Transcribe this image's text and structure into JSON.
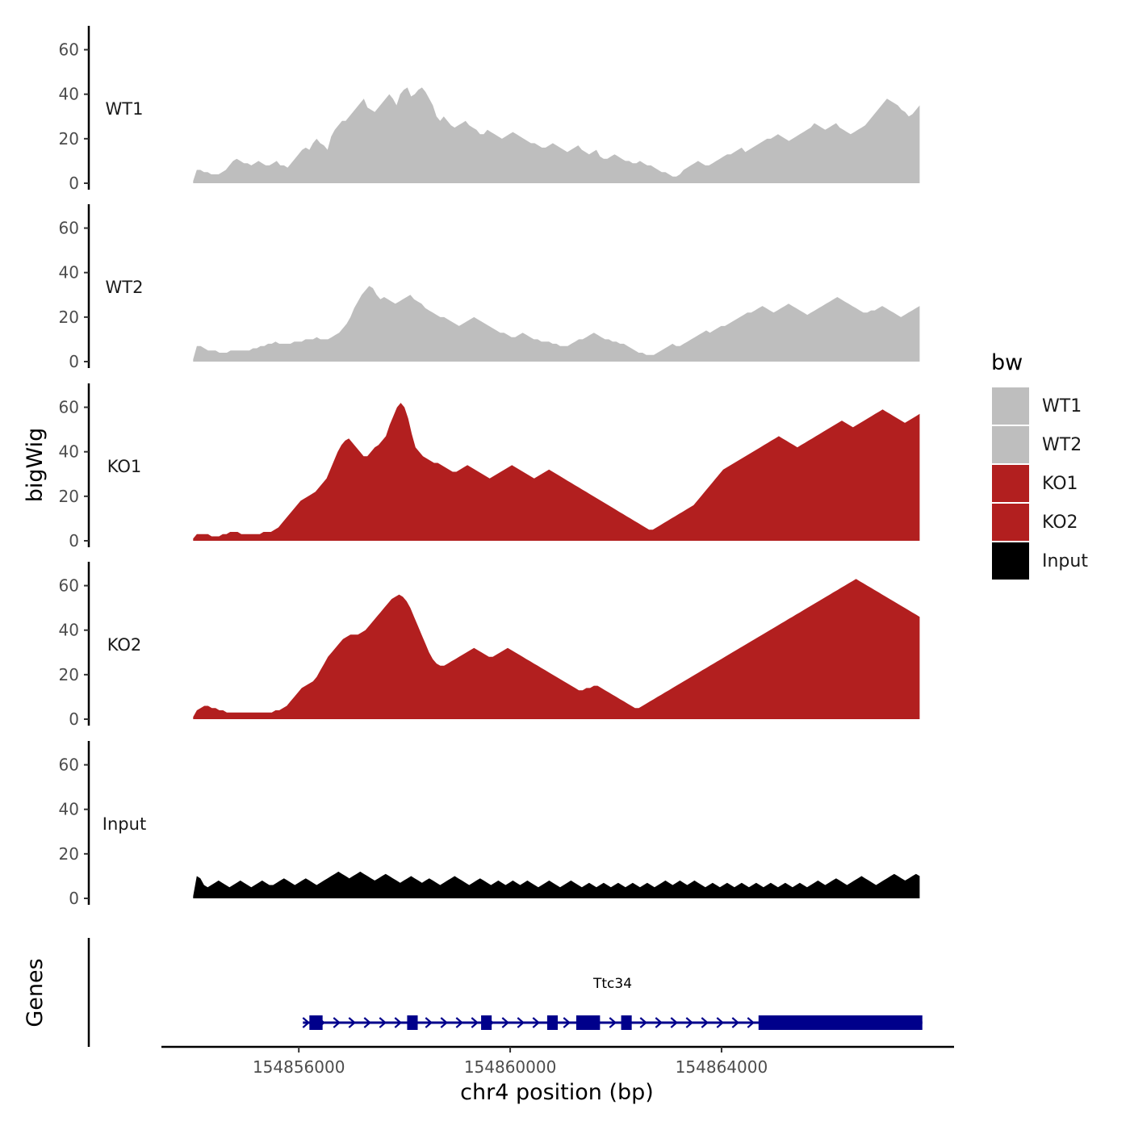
{
  "chart_data": {
    "type": "area",
    "ylabel": "bigWig",
    "xlabel": "chr4 position (bp)",
    "ylim": [
      0,
      70
    ],
    "y_ticks": [
      0,
      20,
      40,
      60
    ],
    "xlim": [
      154853400,
      154868400
    ],
    "x_ticks": [
      154856000,
      154860000,
      154864000
    ],
    "x_tick_labels": [
      "154856000",
      "154860000",
      "154864000"
    ],
    "data_range": [
      154854000,
      154867750
    ],
    "legend": {
      "title": "bw",
      "entries": [
        {
          "label": "WT1",
          "color": "#bebebe"
        },
        {
          "label": "WT2",
          "color": "#bebebe"
        },
        {
          "label": "KO1",
          "color": "#b21f1f"
        },
        {
          "label": "KO2",
          "color": "#b21f1f"
        },
        {
          "label": "Input",
          "color": "#000000"
        }
      ]
    },
    "series": [
      {
        "name": "WT1",
        "color": "#bebebe",
        "values": [
          1,
          6,
          6,
          5,
          5,
          4,
          4,
          4,
          5,
          6,
          8,
          10,
          11,
          10,
          9,
          9,
          8,
          9,
          10,
          9,
          8,
          8,
          9,
          10,
          8,
          8,
          7,
          9,
          11,
          13,
          15,
          16,
          15,
          18,
          20,
          18,
          17,
          15,
          21,
          24,
          26,
          28,
          28,
          30,
          32,
          34,
          36,
          38,
          34,
          33,
          32,
          34,
          36,
          38,
          40,
          38,
          35,
          40,
          42,
          43,
          39,
          40,
          42,
          43,
          41,
          38,
          35,
          30,
          28,
          30,
          28,
          26,
          25,
          26,
          27,
          28,
          26,
          25,
          24,
          22,
          22,
          24,
          23,
          22,
          21,
          20,
          21,
          22,
          23,
          22,
          21,
          20,
          19,
          18,
          18,
          17,
          16,
          16,
          17,
          18,
          17,
          16,
          15,
          14,
          15,
          16,
          17,
          15,
          14,
          13,
          14,
          15,
          12,
          11,
          11,
          12,
          13,
          12,
          11,
          10,
          10,
          9,
          9,
          10,
          9,
          8,
          8,
          7,
          6,
          5,
          5,
          4,
          3,
          3,
          4,
          6,
          7,
          8,
          9,
          10,
          9,
          8,
          8,
          9,
          10,
          11,
          12,
          13,
          13,
          14,
          15,
          16,
          14,
          15,
          16,
          17,
          18,
          19,
          20,
          20,
          21,
          22,
          21,
          20,
          19,
          20,
          21,
          22,
          23,
          24,
          25,
          27,
          26,
          25,
          24,
          25,
          26,
          27,
          25,
          24,
          23,
          22,
          23,
          24,
          25,
          26,
          28,
          30,
          32,
          34,
          36,
          38,
          37,
          36,
          35,
          33,
          32,
          30,
          31,
          33,
          35
        ]
      },
      {
        "name": "WT2",
        "color": "#bebebe",
        "values": [
          1,
          7,
          7,
          6,
          5,
          5,
          5,
          4,
          4,
          4,
          5,
          5,
          5,
          5,
          5,
          5,
          6,
          6,
          7,
          7,
          8,
          8,
          9,
          8,
          8,
          8,
          8,
          9,
          9,
          9,
          10,
          10,
          10,
          11,
          10,
          10,
          10,
          11,
          12,
          13,
          15,
          17,
          20,
          24,
          27,
          30,
          32,
          34,
          33,
          30,
          28,
          29,
          28,
          27,
          26,
          27,
          28,
          29,
          30,
          28,
          27,
          26,
          24,
          23,
          22,
          21,
          20,
          20,
          19,
          18,
          17,
          16,
          17,
          18,
          19,
          20,
          19,
          18,
          17,
          16,
          15,
          14,
          13,
          13,
          12,
          11,
          11,
          12,
          13,
          12,
          11,
          10,
          10,
          9,
          9,
          9,
          8,
          8,
          7,
          7,
          7,
          8,
          9,
          10,
          10,
          11,
          12,
          13,
          12,
          11,
          10,
          10,
          9,
          9,
          8,
          8,
          7,
          6,
          5,
          4,
          4,
          3,
          3,
          3,
          4,
          5,
          6,
          7,
          8,
          7,
          7,
          8,
          9,
          10,
          11,
          12,
          13,
          14,
          13,
          14,
          15,
          16,
          16,
          17,
          18,
          19,
          20,
          21,
          22,
          22,
          23,
          24,
          25,
          24,
          23,
          22,
          23,
          24,
          25,
          26,
          25,
          24,
          23,
          22,
          21,
          22,
          23,
          24,
          25,
          26,
          27,
          28,
          29,
          28,
          27,
          26,
          25,
          24,
          23,
          22,
          22,
          23,
          23,
          24,
          25,
          24,
          23,
          22,
          21,
          20,
          21,
          22,
          23,
          24,
          25
        ]
      },
      {
        "name": "KO1",
        "color": "#b21f1f",
        "values": [
          1,
          3,
          3,
          3,
          3,
          2,
          2,
          2,
          3,
          3,
          4,
          4,
          4,
          3,
          3,
          3,
          3,
          3,
          3,
          4,
          4,
          4,
          5,
          6,
          8,
          10,
          12,
          14,
          16,
          18,
          19,
          20,
          21,
          22,
          24,
          26,
          28,
          32,
          36,
          40,
          43,
          45,
          46,
          44,
          42,
          40,
          38,
          38,
          40,
          42,
          43,
          45,
          47,
          52,
          56,
          60,
          62,
          60,
          55,
          48,
          42,
          40,
          38,
          37,
          36,
          35,
          35,
          34,
          33,
          32,
          31,
          31,
          32,
          33,
          34,
          33,
          32,
          31,
          30,
          29,
          28,
          29,
          30,
          31,
          32,
          33,
          34,
          33,
          32,
          31,
          30,
          29,
          28,
          29,
          30,
          31,
          32,
          31,
          30,
          29,
          28,
          27,
          26,
          25,
          24,
          23,
          22,
          21,
          20,
          19,
          18,
          17,
          16,
          15,
          14,
          13,
          12,
          11,
          10,
          9,
          8,
          7,
          6,
          5,
          5,
          6,
          7,
          8,
          9,
          10,
          11,
          12,
          13,
          14,
          15,
          16,
          18,
          20,
          22,
          24,
          26,
          28,
          30,
          32,
          33,
          34,
          35,
          36,
          37,
          38,
          39,
          40,
          41,
          42,
          43,
          44,
          45,
          46,
          47,
          46,
          45,
          44,
          43,
          42,
          43,
          44,
          45,
          46,
          47,
          48,
          49,
          50,
          51,
          52,
          53,
          54,
          53,
          52,
          51,
          52,
          53,
          54,
          55,
          56,
          57,
          58,
          59,
          58,
          57,
          56,
          55,
          54,
          53,
          54,
          55,
          56,
          57
        ]
      },
      {
        "name": "KO2",
        "color": "#b21f1f",
        "values": [
          1,
          4,
          5,
          6,
          6,
          5,
          5,
          4,
          4,
          3,
          3,
          3,
          3,
          3,
          3,
          3,
          3,
          3,
          3,
          3,
          3,
          3,
          4,
          4,
          5,
          6,
          8,
          10,
          12,
          14,
          15,
          16,
          17,
          19,
          22,
          25,
          28,
          30,
          32,
          34,
          36,
          37,
          38,
          38,
          38,
          39,
          40,
          42,
          44,
          46,
          48,
          50,
          52,
          54,
          55,
          56,
          55,
          53,
          50,
          46,
          42,
          38,
          34,
          30,
          27,
          25,
          24,
          24,
          25,
          26,
          27,
          28,
          29,
          30,
          31,
          32,
          31,
          30,
          29,
          28,
          28,
          29,
          30,
          31,
          32,
          31,
          30,
          29,
          28,
          27,
          26,
          25,
          24,
          23,
          22,
          21,
          20,
          19,
          18,
          17,
          16,
          15,
          14,
          13,
          13,
          14,
          14,
          15,
          15,
          14,
          13,
          12,
          11,
          10,
          9,
          8,
          7,
          6,
          5,
          5,
          6,
          7,
          8,
          9,
          10,
          11,
          12,
          13,
          14,
          15,
          16,
          17,
          18,
          19,
          20,
          21,
          22,
          23,
          24,
          25,
          26,
          27,
          28,
          29,
          30,
          31,
          32,
          33,
          34,
          35,
          36,
          37,
          38,
          39,
          40,
          41,
          42,
          43,
          44,
          45,
          46,
          47,
          48,
          49,
          50,
          51,
          52,
          53,
          54,
          55,
          56,
          57,
          58,
          59,
          60,
          61,
          62,
          63,
          62,
          61,
          60,
          59,
          58,
          57,
          56,
          55,
          54,
          53,
          52,
          51,
          50,
          49,
          48,
          47,
          46
        ]
      },
      {
        "name": "Input",
        "color": "#000000",
        "values": [
          1,
          10,
          9,
          6,
          5,
          6,
          7,
          8,
          7,
          6,
          5,
          6,
          7,
          8,
          7,
          6,
          5,
          6,
          7,
          8,
          7,
          6,
          6,
          7,
          8,
          9,
          8,
          7,
          6,
          7,
          8,
          9,
          8,
          7,
          6,
          7,
          8,
          9,
          10,
          11,
          12,
          11,
          10,
          9,
          10,
          11,
          12,
          11,
          10,
          9,
          8,
          9,
          10,
          11,
          10,
          9,
          8,
          7,
          8,
          9,
          10,
          9,
          8,
          7,
          8,
          9,
          8,
          7,
          6,
          7,
          8,
          9,
          10,
          9,
          8,
          7,
          6,
          7,
          8,
          9,
          8,
          7,
          6,
          7,
          8,
          7,
          6,
          7,
          8,
          7,
          6,
          7,
          8,
          7,
          6,
          5,
          6,
          7,
          8,
          7,
          6,
          5,
          6,
          7,
          8,
          7,
          6,
          5,
          6,
          7,
          6,
          5,
          6,
          7,
          6,
          5,
          6,
          7,
          6,
          5,
          6,
          7,
          6,
          5,
          6,
          7,
          6,
          5,
          6,
          7,
          8,
          7,
          6,
          7,
          8,
          7,
          6,
          7,
          8,
          7,
          6,
          5,
          6,
          7,
          6,
          5,
          6,
          7,
          6,
          5,
          6,
          7,
          6,
          5,
          6,
          7,
          6,
          5,
          6,
          7,
          6,
          5,
          6,
          7,
          6,
          5,
          6,
          7,
          6,
          5,
          6,
          7,
          8,
          7,
          6,
          7,
          8,
          9,
          8,
          7,
          6,
          7,
          8,
          9,
          10,
          9,
          8,
          7,
          6,
          7,
          8,
          9,
          10,
          11,
          10,
          9,
          8,
          9,
          10,
          11,
          10
        ]
      }
    ],
    "genes_track": {
      "label": "Genes",
      "gene_name": "Ttc34",
      "strand": "+",
      "gene_range": [
        154856200,
        154867800
      ],
      "exons": [
        [
          154856200,
          154856450
        ],
        [
          154858050,
          154858250
        ],
        [
          154859450,
          154859650
        ],
        [
          154860700,
          154860900
        ],
        [
          154861250,
          154861700
        ],
        [
          154862100,
          154862300
        ],
        [
          154864700,
          154867800
        ]
      ]
    }
  }
}
